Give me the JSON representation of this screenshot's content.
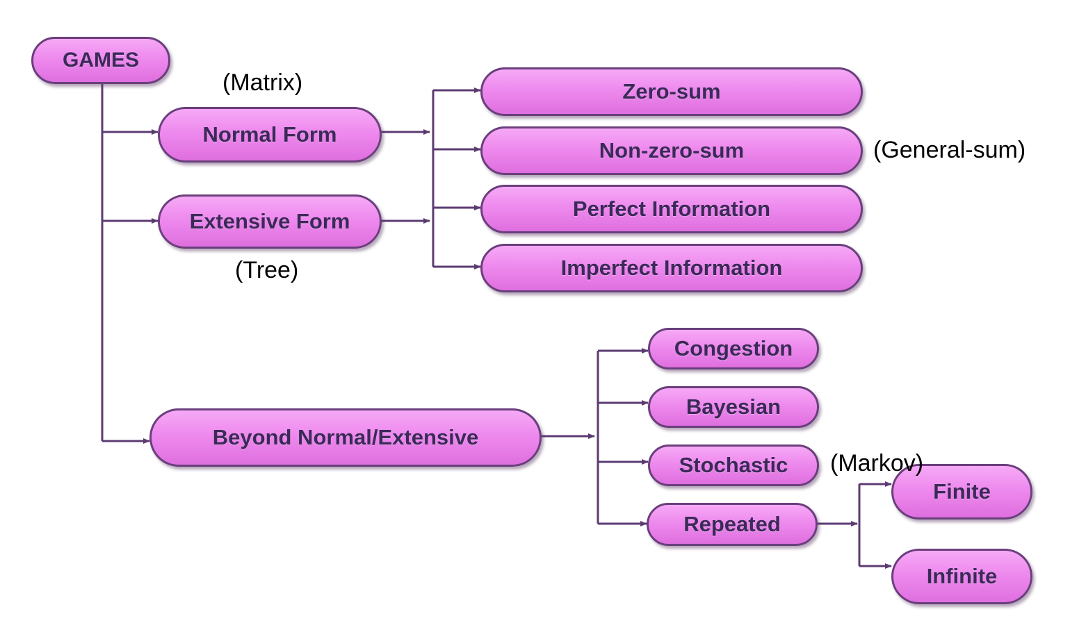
{
  "colors": {
    "node_fill": "#ee8aee",
    "node_border": "#6a3f7c",
    "node_text": "#3b2a58",
    "connector": "#5c3b72",
    "note_text": "#000000"
  },
  "nodes": {
    "games": "GAMES",
    "normal_form": "Normal Form",
    "extensive_form": "Extensive Form",
    "beyond": "Beyond Normal/Extensive",
    "zero_sum": "Zero-sum",
    "non_zero_sum": "Non-zero-sum",
    "perfect_information": "Perfect Information",
    "imperfect_information": "Imperfect Information",
    "congestion": "Congestion",
    "bayesian": "Bayesian",
    "stochastic": "Stochastic",
    "repeated": "Repeated",
    "finite": "Finite",
    "infinite": "Infinite"
  },
  "annotations": {
    "matrix": "(Matrix)",
    "tree": "(Tree)",
    "general_sum": "(General-sum)",
    "markov": "(Markov)"
  }
}
